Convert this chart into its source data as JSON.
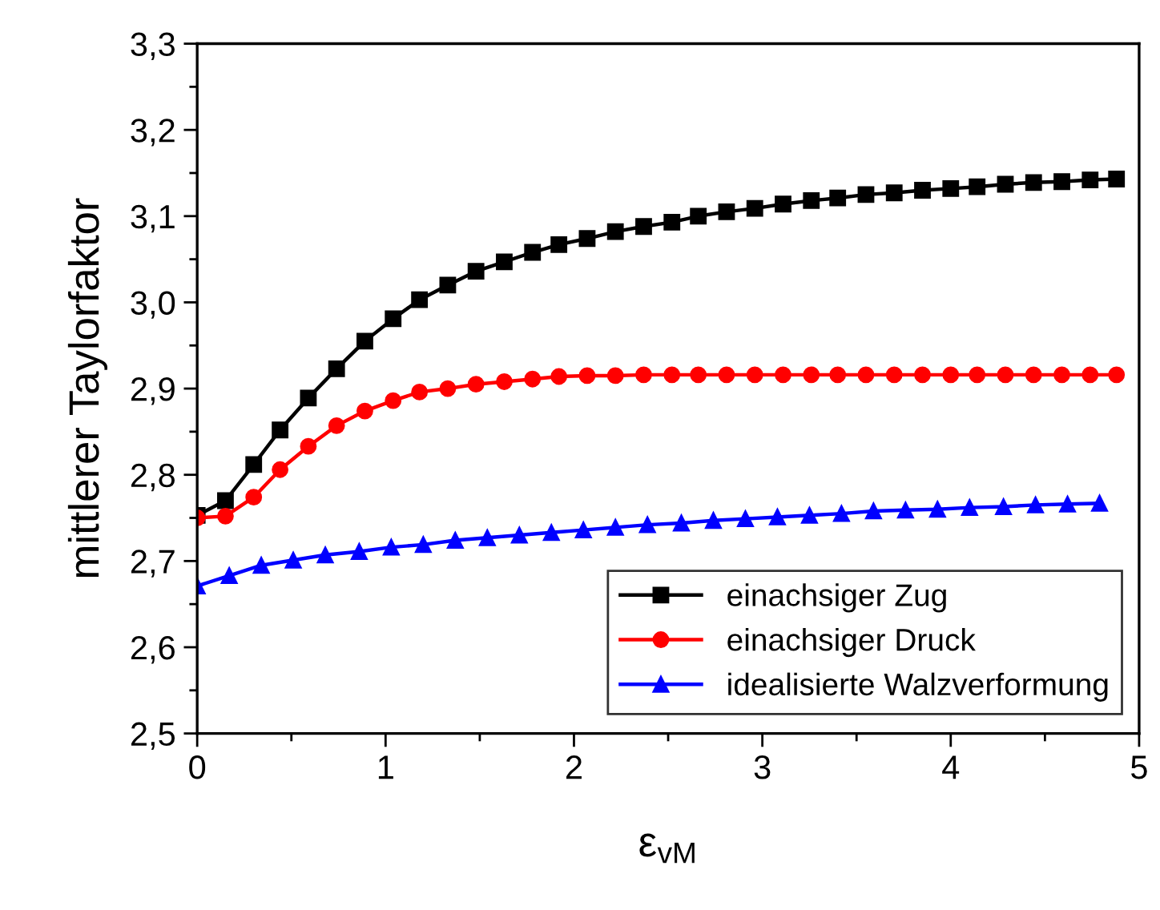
{
  "chart_data": {
    "type": "line",
    "xlabel": "ε$_{vM}$",
    "ylabel": "mittlerer Taylorfaktor",
    "xlim": [
      0,
      5
    ],
    "xticks": [
      0,
      1,
      2,
      3,
      4,
      5
    ],
    "ylim": [
      2.5,
      3.3
    ],
    "yticks": [
      {
        "value": 2.5,
        "label": "2,5"
      },
      {
        "value": 2.6,
        "label": "2,6"
      },
      {
        "value": 2.7,
        "label": "2,7"
      },
      {
        "value": 2.8,
        "label": "2,8"
      },
      {
        "value": 2.9,
        "label": "2,9"
      },
      {
        "value": 3.0,
        "label": "3,0"
      },
      {
        "value": 3.1,
        "label": "3,1"
      },
      {
        "value": 3.2,
        "label": "3,2"
      },
      {
        "value": 3.3,
        "label": "3,3"
      }
    ],
    "grid": false,
    "legend": "bottom right",
    "line_style": "solid",
    "series": [
      {
        "name": "einachsiger Zug",
        "color": "#000000",
        "marker": "square",
        "x": [
          0,
          0.15,
          0.3,
          0.44,
          0.59,
          0.74,
          0.89,
          1.04,
          1.18,
          1.33,
          1.48,
          1.63,
          1.78,
          1.92,
          2.07,
          2.22,
          2.37,
          2.52,
          2.66,
          2.81,
          2.96,
          3.11,
          3.26,
          3.4,
          3.55,
          3.7,
          3.85,
          4.0,
          4.14,
          4.29,
          4.44,
          4.59,
          4.74,
          4.88
        ],
        "values": [
          2.753,
          2.77,
          2.812,
          2.852,
          2.889,
          2.923,
          2.955,
          2.981,
          3.003,
          3.02,
          3.036,
          3.047,
          3.058,
          3.067,
          3.074,
          3.082,
          3.088,
          3.093,
          3.1,
          3.105,
          3.109,
          3.114,
          3.118,
          3.121,
          3.125,
          3.127,
          3.13,
          3.132,
          3.134,
          3.137,
          3.139,
          3.14,
          3.142,
          3.143
        ]
      },
      {
        "name": "einachsiger Druck",
        "color": "#ff0000",
        "marker": "circle",
        "x": [
          0,
          0.15,
          0.3,
          0.44,
          0.59,
          0.74,
          0.89,
          1.04,
          1.18,
          1.33,
          1.48,
          1.63,
          1.78,
          1.92,
          2.07,
          2.22,
          2.37,
          2.52,
          2.66,
          2.81,
          2.96,
          3.11,
          3.26,
          3.4,
          3.55,
          3.7,
          3.85,
          4.0,
          4.14,
          4.29,
          4.44,
          4.59,
          4.74,
          4.88
        ],
        "values": [
          2.75,
          2.752,
          2.774,
          2.806,
          2.833,
          2.857,
          2.874,
          2.886,
          2.896,
          2.9,
          2.905,
          2.908,
          2.911,
          2.914,
          2.915,
          2.915,
          2.916,
          2.916,
          2.916,
          2.916,
          2.916,
          2.916,
          2.916,
          2.916,
          2.916,
          2.916,
          2.916,
          2.916,
          2.916,
          2.916,
          2.916,
          2.916,
          2.916,
          2.916
        ]
      },
      {
        "name": "idealisierte Walzverformung",
        "color": "#0000ff",
        "marker": "triangle",
        "x": [
          0,
          0.17,
          0.34,
          0.51,
          0.68,
          0.86,
          1.03,
          1.2,
          1.37,
          1.54,
          1.71,
          1.88,
          2.05,
          2.22,
          2.39,
          2.57,
          2.74,
          2.91,
          3.08,
          3.25,
          3.42,
          3.59,
          3.76,
          3.93,
          4.1,
          4.28,
          4.45,
          4.62,
          4.79
        ],
        "values": [
          2.671,
          2.683,
          2.695,
          2.701,
          2.707,
          2.711,
          2.716,
          2.719,
          2.724,
          2.727,
          2.73,
          2.733,
          2.736,
          2.739,
          2.742,
          2.744,
          2.747,
          2.749,
          2.751,
          2.753,
          2.755,
          2.758,
          2.759,
          2.76,
          2.762,
          2.763,
          2.765,
          2.766,
          2.767
        ]
      }
    ]
  }
}
